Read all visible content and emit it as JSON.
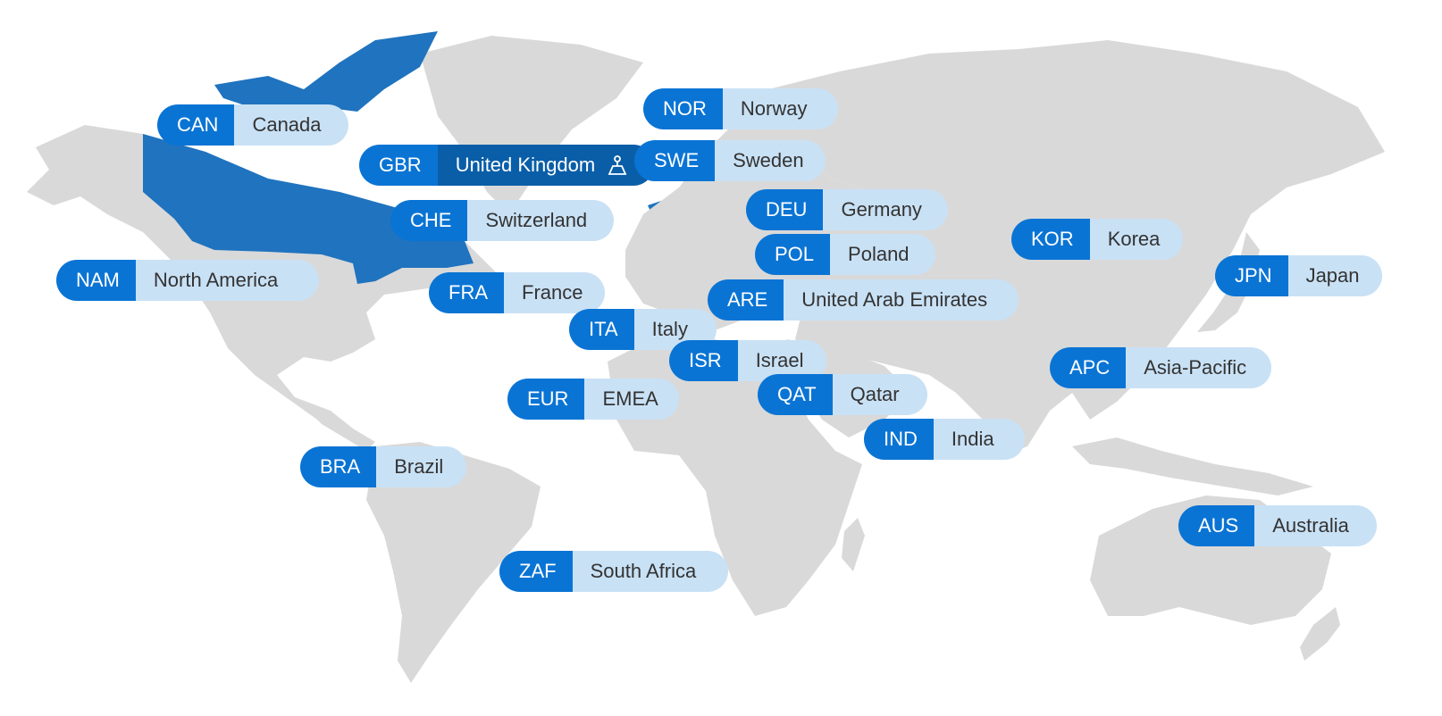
{
  "map": {
    "land_color": "#d9d9d9",
    "selected_color": "#1f73bf",
    "code_color": "#0a74d4",
    "name_color": "#c9e1f5",
    "active_name_color": "#0a5ea8"
  },
  "regions": [
    {
      "code": "CAN",
      "name": "Canada"
    },
    {
      "code": "GBR",
      "name": "United Kingdom",
      "active": true,
      "icon": "headquarters-icon"
    },
    {
      "code": "NOR",
      "name": "Norway"
    },
    {
      "code": "SWE",
      "name": "Sweden"
    },
    {
      "code": "CHE",
      "name": "Switzerland"
    },
    {
      "code": "DEU",
      "name": "Germany"
    },
    {
      "code": "POL",
      "name": "Poland"
    },
    {
      "code": "KOR",
      "name": "Korea"
    },
    {
      "code": "JPN",
      "name": "Japan"
    },
    {
      "code": "NAM",
      "name": "North America"
    },
    {
      "code": "FRA",
      "name": "France"
    },
    {
      "code": "ARE",
      "name": "United Arab Emirates"
    },
    {
      "code": "ITA",
      "name": "Italy"
    },
    {
      "code": "ISR",
      "name": "Israel"
    },
    {
      "code": "APC",
      "name": "Asia-Pacific"
    },
    {
      "code": "EUR",
      "name": "EMEA"
    },
    {
      "code": "QAT",
      "name": "Qatar"
    },
    {
      "code": "IND",
      "name": "India"
    },
    {
      "code": "BRA",
      "name": "Brazil"
    },
    {
      "code": "AUS",
      "name": "Australia"
    },
    {
      "code": "ZAF",
      "name": "South Africa"
    }
  ]
}
